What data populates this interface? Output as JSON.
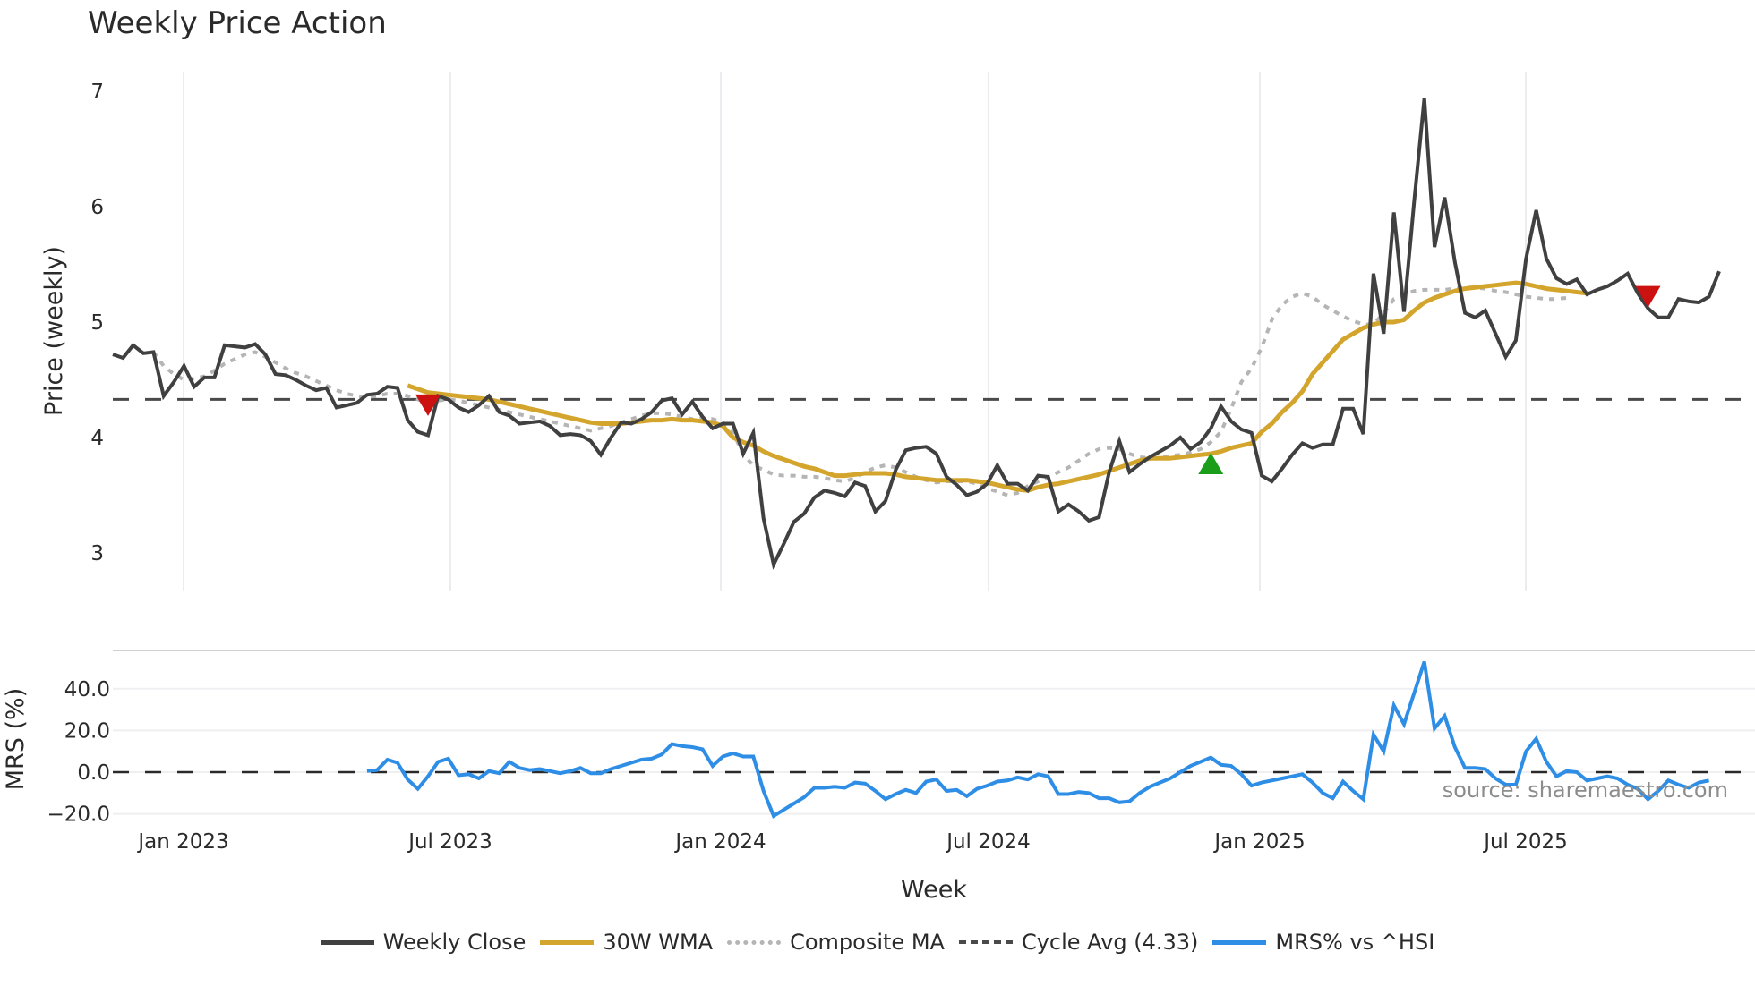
{
  "title": "Weekly Price Action",
  "source": "source: sharemaestro.com",
  "colors": {
    "weekly_close": "#404040",
    "wma": "#d4a52c",
    "composite": "#b5b5b5",
    "cycle_avg": "#4a4a4a",
    "mrs": "#2e8ee6",
    "sell_marker": "#cc1111",
    "buy_marker": "#1a9e1a",
    "grid": "#ececf0"
  },
  "legend": [
    {
      "key": "weekly_close",
      "label": "Weekly Close",
      "style": "solid"
    },
    {
      "key": "wma",
      "label": "30W WMA",
      "style": "solid"
    },
    {
      "key": "composite",
      "label": "Composite MA",
      "style": "dotted"
    },
    {
      "key": "cycle_avg",
      "label": "Cycle Avg (4.33)",
      "style": "dashed"
    },
    {
      "key": "mrs",
      "label": "MRS% vs ^HSI",
      "style": "solid"
    }
  ],
  "chart_data": [
    {
      "type": "line",
      "title": "Weekly Price Action",
      "xlabel": "Week",
      "ylabel": "Price (weekly)",
      "ylim": [
        2.65,
        7.2
      ],
      "yticks": [
        3,
        4,
        5,
        6,
        7
      ],
      "xticks": [
        "Jan 2023",
        "Jul 2023",
        "Jan 2024",
        "Jul 2024",
        "Jan 2025",
        "Jul 2025"
      ],
      "grid": true,
      "legend_position": "bottom",
      "x_start": "2022-11 (weekly)",
      "cycle_avg": 4.33,
      "series": [
        {
          "name": "Weekly Close",
          "values": [
            4.72,
            4.69,
            4.8,
            4.73,
            4.74,
            4.36,
            4.48,
            4.62,
            4.44,
            4.52,
            4.52,
            4.8,
            4.79,
            4.78,
            4.81,
            4.72,
            4.55,
            4.54,
            4.5,
            4.45,
            4.41,
            4.43,
            4.26,
            4.28,
            4.3,
            4.37,
            4.38,
            4.44,
            4.43,
            4.15,
            4.05,
            4.02,
            4.36,
            4.33,
            4.26,
            4.22,
            4.28,
            4.36,
            4.22,
            4.19,
            4.12,
            4.13,
            4.14,
            4.1,
            4.02,
            4.03,
            4.02,
            3.97,
            3.85,
            4.0,
            4.13,
            4.12,
            4.16,
            4.22,
            4.32,
            4.34,
            4.2,
            4.31,
            4.18,
            4.08,
            4.12,
            4.12,
            3.86,
            4.04,
            3.3,
            2.9,
            3.08,
            3.27,
            3.34,
            3.48,
            3.54,
            3.52,
            3.49,
            3.61,
            3.58,
            3.36,
            3.45,
            3.72,
            3.89,
            3.91,
            3.92,
            3.86,
            3.66,
            3.59,
            3.5,
            3.53,
            3.6,
            3.76,
            3.6,
            3.6,
            3.54,
            3.67,
            3.66,
            3.36,
            3.42,
            3.36,
            3.28,
            3.31,
            3.7,
            3.97,
            3.7,
            3.77,
            3.83,
            3.88,
            3.93,
            4.0,
            3.9,
            3.96,
            4.08,
            4.27,
            4.14,
            4.07,
            4.04,
            3.67,
            3.62,
            3.73,
            3.85,
            3.95,
            3.91,
            3.94,
            3.94,
            4.25,
            4.25,
            4.03,
            5.42,
            4.9,
            5.95,
            5.09,
            6.05,
            6.94,
            5.65,
            6.08,
            5.52,
            5.08,
            5.04,
            5.1,
            4.9,
            4.7,
            4.84,
            5.55,
            5.97,
            5.55,
            5.38,
            5.33,
            5.37,
            5.24,
            5.28,
            5.31,
            5.36,
            5.42,
            5.25,
            5.12,
            5.04,
            5.04,
            5.2,
            5.18,
            5.17,
            5.22,
            5.44
          ]
        },
        {
          "name": "30W WMA",
          "start_index": 29,
          "values": [
            4.45,
            4.42,
            4.39,
            4.38,
            4.37,
            4.36,
            4.35,
            4.34,
            4.33,
            4.31,
            4.29,
            4.27,
            4.25,
            4.23,
            4.21,
            4.19,
            4.17,
            4.15,
            4.13,
            4.12,
            4.12,
            4.12,
            4.13,
            4.14,
            4.15,
            4.15,
            4.16,
            4.15,
            4.15,
            4.14,
            4.13,
            4.1,
            4.0,
            3.96,
            3.93,
            3.88,
            3.84,
            3.81,
            3.78,
            3.75,
            3.73,
            3.7,
            3.67,
            3.67,
            3.68,
            3.69,
            3.69,
            3.69,
            3.68,
            3.66,
            3.65,
            3.64,
            3.63,
            3.63,
            3.63,
            3.63,
            3.62,
            3.61,
            3.59,
            3.57,
            3.55,
            3.54,
            3.57,
            3.59,
            3.6,
            3.62,
            3.64,
            3.66,
            3.68,
            3.71,
            3.74,
            3.77,
            3.8,
            3.82,
            3.82,
            3.82,
            3.83,
            3.84,
            3.85,
            3.86,
            3.88,
            3.91,
            3.93,
            3.95,
            4.05,
            4.12,
            4.22,
            4.3,
            4.4,
            4.55,
            4.65,
            4.75,
            4.85,
            4.9,
            4.95,
            4.98,
            5.0,
            5.0,
            5.02,
            5.1,
            5.17,
            5.21,
            5.24,
            5.27,
            5.29,
            5.3,
            5.31,
            5.32,
            5.33,
            5.34,
            5.33,
            5.31,
            5.29,
            5.28,
            5.27,
            5.26,
            5.25
          ]
        },
        {
          "name": "Composite MA",
          "start_index": 4,
          "values": [
            4.74,
            4.62,
            4.55,
            4.5,
            4.51,
            4.53,
            4.58,
            4.64,
            4.68,
            4.72,
            4.74,
            4.7,
            4.65,
            4.6,
            4.56,
            4.53,
            4.49,
            4.45,
            4.41,
            4.38,
            4.36,
            4.35,
            4.36,
            4.38,
            4.38,
            4.36,
            4.33,
            4.3,
            4.32,
            4.33,
            4.32,
            4.3,
            4.28,
            4.26,
            4.24,
            4.22,
            4.2,
            4.18,
            4.16,
            4.14,
            4.12,
            4.1,
            4.08,
            4.06,
            4.08,
            4.1,
            4.13,
            4.16,
            4.19,
            4.21,
            4.21,
            4.2,
            4.18,
            4.16,
            4.17,
            4.16,
            4.13,
            4.05,
            3.85,
            3.76,
            3.72,
            3.68,
            3.67,
            3.67,
            3.66,
            3.66,
            3.65,
            3.63,
            3.62,
            3.65,
            3.7,
            3.74,
            3.76,
            3.74,
            3.7,
            3.66,
            3.63,
            3.61,
            3.62,
            3.62,
            3.62,
            3.6,
            3.56,
            3.53,
            3.5,
            3.52,
            3.58,
            3.62,
            3.66,
            3.7,
            3.74,
            3.8,
            3.86,
            3.9,
            3.91,
            3.9,
            3.86,
            3.83,
            3.82,
            3.83,
            3.84,
            3.85,
            3.87,
            3.9,
            3.96,
            4.05,
            4.25,
            4.48,
            4.6,
            4.78,
            5.02,
            5.15,
            5.22,
            5.25,
            5.22,
            5.15,
            5.1,
            5.05,
            5.01,
            4.98,
            4.98,
            5.08,
            5.2,
            5.24,
            5.27,
            5.28,
            5.28,
            5.28,
            5.29,
            5.3,
            5.3,
            5.29,
            5.27,
            5.26,
            5.24,
            5.22,
            5.21,
            5.2,
            5.2,
            5.21
          ]
        }
      ],
      "markers": [
        {
          "type": "sell",
          "index": 31,
          "value": 4.28
        },
        {
          "type": "buy",
          "index": 108,
          "value": 3.76
        },
        {
          "type": "sell",
          "index": 151,
          "value": 5.22
        }
      ]
    },
    {
      "type": "line",
      "xlabel": "Week",
      "ylabel": "MRS (%)",
      "ylim": [
        -24,
        58
      ],
      "yticks": [
        "-20.0",
        "0.0",
        "20.0",
        "40.0"
      ],
      "xticks": [
        "Jan 2023",
        "Jul 2023",
        "Jan 2024",
        "Jul 2024",
        "Jan 2025",
        "Jul 2025"
      ],
      "zero_line": "dashed",
      "series": [
        {
          "name": "MRS% vs ^HSI",
          "start_index": 25,
          "values": [
            0.5,
            1.0,
            6.0,
            4.5,
            -3.5,
            -8.0,
            -2.0,
            5.0,
            6.5,
            -1.5,
            -1.0,
            -3.0,
            0.5,
            -0.5,
            5.0,
            2.0,
            1.0,
            1.5,
            0.5,
            -0.5,
            0.5,
            2.0,
            -0.5,
            -0.5,
            1.5,
            3.0,
            4.5,
            6.0,
            6.5,
            8.5,
            13.5,
            12.5,
            12.0,
            11.0,
            3.0,
            7.5,
            9.0,
            7.5,
            7.5,
            -9.0,
            -21.0,
            -18.0,
            -15.0,
            -12.0,
            -7.5,
            -7.5,
            -7.0,
            -7.5,
            -5.0,
            -5.5,
            -9.0,
            -13.0,
            -10.5,
            -8.5,
            -10.0,
            -4.5,
            -3.5,
            -9.0,
            -8.5,
            -11.5,
            -8.0,
            -6.5,
            -4.5,
            -4.0,
            -2.5,
            -3.5,
            -1.0,
            -2.0,
            -10.5,
            -10.5,
            -9.5,
            -10.0,
            -12.5,
            -12.5,
            -14.5,
            -14.0,
            -10.0,
            -7.0,
            -5.0,
            -3.0,
            0.0,
            3.0,
            5.0,
            7.0,
            3.5,
            3.0,
            -1.0,
            -6.5,
            -5.0,
            -4.0,
            -3.0,
            -2.0,
            -1.0,
            -5.0,
            -10.0,
            -12.5,
            -4.5,
            -9.0,
            -13.0,
            18.0,
            10.0,
            32.0,
            23.0,
            38.0,
            53.0,
            21.0,
            27.0,
            12.0,
            2.0,
            2.0,
            1.5,
            -3.0,
            -6.0,
            -6.0,
            10.0,
            16.0,
            5.0,
            -2.0,
            0.5,
            0.0,
            -4.0,
            -3.0,
            -2.0,
            -3.0,
            -6.0,
            -8.0,
            -13.0,
            -9.0,
            -4.0,
            -6.0,
            -7.5,
            -5.0,
            -4.0
          ]
        }
      ]
    }
  ],
  "axes": {
    "price_ylabel": "Price (weekly)",
    "mrs_ylabel": "MRS (%)",
    "xlabel": "Week",
    "price_yticks": [
      "3",
      "4",
      "5",
      "6",
      "7"
    ],
    "mrs_yticks": [
      "−20.0",
      "0.0",
      "20.0",
      "40.0"
    ],
    "xticks": [
      "Jan 2023",
      "Jul 2023",
      "Jan 2024",
      "Jul 2024",
      "Jan 2025",
      "Jul 2025"
    ]
  }
}
